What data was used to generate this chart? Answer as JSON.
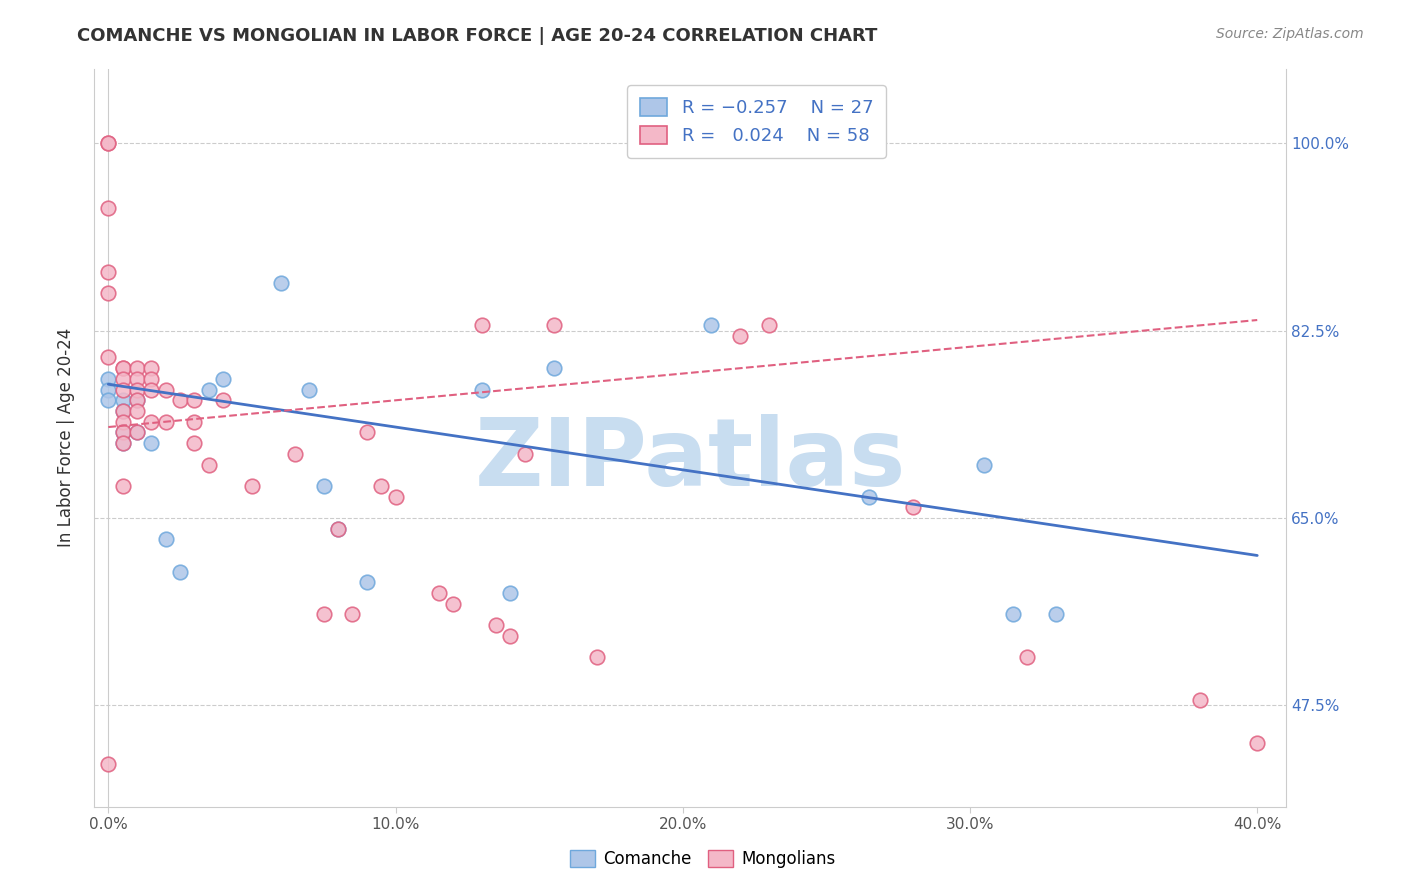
{
  "title": "COMANCHE VS MONGOLIAN IN LABOR FORCE | AGE 20-24 CORRELATION CHART",
  "source": "Source: ZipAtlas.com",
  "ylabel": "In Labor Force | Age 20-24",
  "xlabel_ticks": [
    "0.0%",
    "10.0%",
    "20.0%",
    "30.0%",
    "40.0%"
  ],
  "xlabel_vals": [
    0,
    10,
    20,
    30,
    40
  ],
  "ylabel_ticks": [
    "47.5%",
    "65.0%",
    "82.5%",
    "100.0%"
  ],
  "ylabel_vals": [
    47.5,
    65.0,
    82.5,
    100.0
  ],
  "xlim": [
    -0.5,
    41.0
  ],
  "ylim": [
    38.0,
    107.0
  ],
  "title_color": "#333333",
  "source_color": "#888888",
  "right_tick_color": "#4472c4",
  "watermark_text": "ZIPatlas",
  "watermark_color": "#c8ddf0",
  "legend_color": "#4472c4",
  "comanche_color": "#aec6e8",
  "comanche_edge": "#6fa8dc",
  "mongolian_color": "#f4b8c8",
  "mongolian_edge": "#e06080",
  "trend_blue": "#4472c4",
  "trend_pink": "#e06080",
  "comanche_x": [
    0.0,
    0.0,
    0.0,
    0.5,
    0.5,
    0.5,
    0.5,
    1.0,
    1.0,
    1.5,
    2.0,
    2.5,
    3.5,
    4.0,
    6.0,
    7.0,
    7.5,
    8.0,
    9.0,
    13.0,
    14.0,
    15.5,
    21.0,
    26.5,
    30.5,
    33.0,
    31.5
  ],
  "comanche_y": [
    78.0,
    77.0,
    76.0,
    76.0,
    75.0,
    73.0,
    72.0,
    76.0,
    73.0,
    72.0,
    63.0,
    60.0,
    77.0,
    78.0,
    87.0,
    77.0,
    68.0,
    64.0,
    59.0,
    77.0,
    58.0,
    79.0,
    83.0,
    67.0,
    70.0,
    56.0,
    56.0
  ],
  "mongolian_x": [
    0.0,
    0.0,
    0.0,
    0.0,
    0.0,
    0.0,
    0.0,
    0.5,
    0.5,
    0.5,
    0.5,
    0.5,
    0.5,
    0.5,
    0.5,
    0.5,
    1.0,
    1.0,
    1.0,
    1.0,
    1.0,
    1.0,
    1.5,
    1.5,
    1.5,
    1.5,
    2.0,
    2.0,
    2.5,
    3.0,
    3.0,
    3.0,
    3.5,
    4.0,
    5.0,
    6.5,
    7.5,
    8.0,
    8.5,
    9.0,
    9.5,
    10.0,
    11.5,
    12.0,
    13.0,
    13.5,
    14.0,
    14.5,
    15.5,
    17.0,
    22.0,
    23.0,
    28.0,
    32.0,
    38.0,
    40.0
  ],
  "mongolian_y": [
    100.0,
    100.0,
    94.0,
    88.0,
    86.0,
    80.0,
    42.0,
    79.0,
    79.0,
    78.0,
    77.0,
    75.0,
    74.0,
    73.0,
    72.0,
    68.0,
    79.0,
    78.0,
    77.0,
    76.0,
    75.0,
    73.0,
    79.0,
    78.0,
    77.0,
    74.0,
    77.0,
    74.0,
    76.0,
    76.0,
    74.0,
    72.0,
    70.0,
    76.0,
    68.0,
    71.0,
    56.0,
    64.0,
    56.0,
    73.0,
    68.0,
    67.0,
    58.0,
    57.0,
    83.0,
    55.0,
    54.0,
    71.0,
    83.0,
    52.0,
    82.0,
    83.0,
    66.0,
    52.0,
    48.0,
    44.0
  ],
  "comanche_trend_x": [
    0.0,
    40.0
  ],
  "comanche_trend_y": [
    77.5,
    61.5
  ],
  "mongolian_trend_x": [
    0.0,
    40.0
  ],
  "mongolian_trend_y": [
    73.5,
    83.5
  ]
}
